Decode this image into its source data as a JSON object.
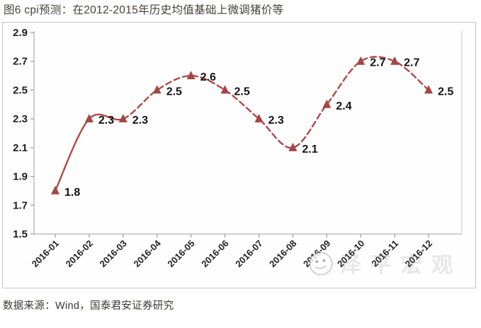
{
  "page": {
    "title": "图6 cpi预测：在2012-2015年历史均值基础上微调猪价等",
    "source": "数据来源：Wind，国泰君安证券研究",
    "watermark_text": "泽平宏观"
  },
  "chart_data": {
    "type": "line",
    "title": "图6 cpi预测：在2012-2015年历史均值基础上微调猪价等",
    "categories": [
      "2016-01",
      "2016-02",
      "2016-03",
      "2016-04",
      "2016-05",
      "2016-06",
      "2016-07",
      "2016-08",
      "2016-09",
      "2016-10",
      "2016-11",
      "2016-12"
    ],
    "series": [
      {
        "name": "cpi预测",
        "values": [
          1.8,
          2.3,
          2.3,
          2.5,
          2.6,
          2.5,
          2.3,
          2.1,
          2.4,
          2.7,
          2.7,
          2.5
        ],
        "solid_points": 3,
        "style_note": "solid line for actual data through 2016-03, dashed line for forecast thereafter"
      }
    ],
    "xlabel": "",
    "ylabel": "",
    "ylim": [
      1.5,
      2.9
    ],
    "ytick_step": 0.2,
    "grid": false,
    "legend": "none",
    "marker": "triangle",
    "data_labels_shown": true,
    "colors": {
      "line": "#b04848",
      "marker": "#a64545",
      "data_label": "#141414",
      "axis": "#b3b3b3",
      "tick": "#9b9b9b",
      "tick_label": "#1f1f1f"
    }
  }
}
